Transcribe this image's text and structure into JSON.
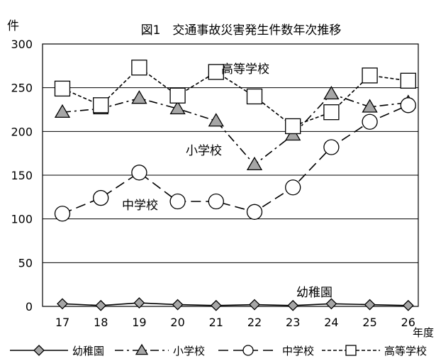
{
  "chart_data": {
    "type": "line",
    "title": "図1　交通事故災害発生件数年次推移",
    "ylabel": "件",
    "xlabel": "年度",
    "categories": [
      "17",
      "18",
      "19",
      "20",
      "21",
      "22",
      "23",
      "24",
      "25",
      "26"
    ],
    "yticks": [
      "0",
      "50",
      "100",
      "150",
      "200",
      "250",
      "300"
    ],
    "ylim": [
      0,
      300
    ],
    "grid": true,
    "legend_position": "bottom",
    "series": [
      {
        "name": "幼稚園",
        "marker": "diamond",
        "dash": "solid",
        "color": "#000000",
        "fill": "#a6a6a6",
        "values": [
          3,
          1,
          4,
          2,
          1,
          2,
          1,
          3,
          2,
          1
        ]
      },
      {
        "name": "小学校",
        "marker": "triangle",
        "dash": "dashdot",
        "color": "#000000",
        "fill": "#a6a6a6",
        "values": [
          222,
          226,
          238,
          226,
          212,
          162,
          196,
          243,
          228,
          233
        ]
      },
      {
        "name": "中学校",
        "marker": "circle",
        "dash": "dashed",
        "color": "#000000",
        "fill": "#ffffff",
        "values": [
          106,
          124,
          153,
          120,
          120,
          108,
          136,
          182,
          211,
          230
        ]
      },
      {
        "name": "高等学校",
        "marker": "square",
        "dash": "dotted",
        "color": "#000000",
        "fill": "#ffffff",
        "values": [
          249,
          230,
          273,
          241,
          268,
          240,
          206,
          222,
          264,
          258
        ]
      }
    ]
  }
}
